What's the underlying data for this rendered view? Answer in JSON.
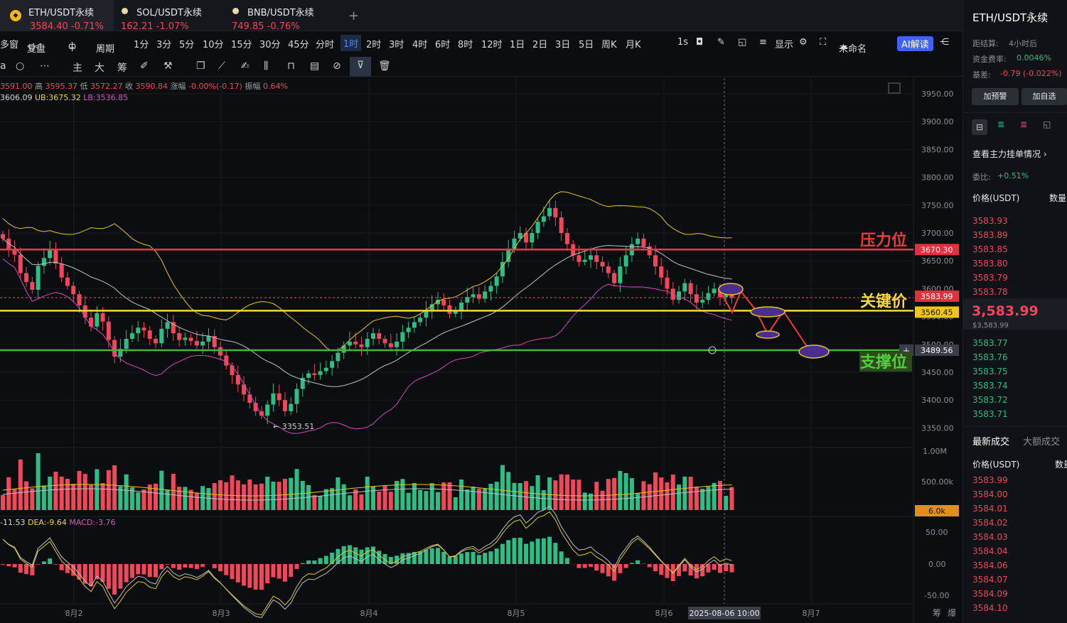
{
  "tabs": [
    {
      "name": "ETH/USDT永续",
      "price": "3584.40",
      "change": "-0.71%"
    },
    {
      "name": "SOL/USDT永续",
      "price": "162.21",
      "change": "-1.07%"
    },
    {
      "name": "BNB/USDT永续",
      "price": "749.85",
      "change": "-0.76%"
    }
  ],
  "toolbar": {
    "multi": "多窗",
    "replay": "复盘",
    "period": "周期",
    "intervals": [
      "1分",
      "3分",
      "5分",
      "10分",
      "15分",
      "30分",
      "45分",
      "分时",
      "1时",
      "2时",
      "3时",
      "4时",
      "6时",
      "8时",
      "12时",
      "1日",
      "2日",
      "3日",
      "5日",
      "周K",
      "月K"
    ],
    "selected": "1时",
    "sec": "1s",
    "display": "显示",
    "unnamed": "未命名",
    "ai": "AI解读"
  },
  "toolbar2": {
    "a": "a",
    "zhu": "主",
    "da": "大",
    "chou": "筹"
  },
  "ohlc": {
    "open": "3591.00",
    "high_label": "高",
    "high": "3595.37",
    "low_label": "低",
    "low": "3572.27",
    "close_label": "收",
    "close": "3590.84",
    "amp_label": "涨幅",
    "amp": "-0.00%(-0.17)",
    "vib_label": "振幅",
    "vib": "0.64%"
  },
  "boll": {
    "mid": "3606.09",
    "ub": "UB:3675.32",
    "lb": "LB:3536.85"
  },
  "macd_hdr": {
    "dif": "-11.53",
    "dea": "DEA:-9.64",
    "macd": "MACD:-3.76"
  },
  "price_axis": [
    "3950.00",
    "3900.00",
    "3850.00",
    "3800.00",
    "3750.00",
    "3700.00",
    "3650.00",
    "3600.00",
    "3550.00",
    "3500.00",
    "3450.00",
    "3400.00",
    "3350.00"
  ],
  "vol_axis": [
    "1.00M",
    "500.00k"
  ],
  "macd_axis": [
    "50.00",
    "0.00",
    "-50.00"
  ],
  "x_axis": [
    "8月2",
    "8月3",
    "8月4",
    "8月5",
    "8月6",
    "8月7"
  ],
  "crosshair_time": "2025-08-06 10:00",
  "labels": {
    "resistance": "压力位",
    "key": "关键价",
    "support": "支撑位"
  },
  "price_tags": {
    "resistance": "3670.30",
    "last": "3583.99",
    "key": "3560.45",
    "support": "3489.56",
    "vol": "6.0k"
  },
  "low_marker": "← 3353.51",
  "bottom_right": [
    "筹",
    "爆"
  ],
  "right_panel": {
    "title": "ETH/USDT永续",
    "settle_label": "距结算:",
    "settle": "4小时后",
    "funding_label": "资金费率:",
    "funding": "0.0046%",
    "basis_label": "基差:",
    "basis": "-0.79 (-0.022%)",
    "btn_alert": "加预警",
    "btn_fav": "加自选",
    "depth_link": "查看主力挂单情况",
    "ratio_label": "委比:",
    "ratio": "+0.51%",
    "col_price": "价格(USDT)",
    "col_qty": "数量",
    "asks": [
      "3583.93",
      "3583.89",
      "3583.85",
      "3583.80",
      "3583.79",
      "3583.78"
    ],
    "last": "3,583.99",
    "last_sub": "$3,583.99",
    "bids": [
      "3583.77",
      "3583.76",
      "3583.75",
      "3583.74",
      "3583.72",
      "3583.71"
    ],
    "trade_tab1": "最新成交",
    "trade_tab2": "大额成交",
    "trades_head": "价格(USDT)",
    "trades_qty": "数量",
    "trades": [
      "3583.99",
      "3584.00",
      "3584.01",
      "3584.02",
      "3584.03",
      "3584.04",
      "3584.06",
      "3584.07",
      "3584.09",
      "3584.10"
    ]
  },
  "colors": {
    "up": "#2ebd85",
    "down": "#f0475a",
    "accent": "#4a86ff",
    "resistance": "#f03a3a",
    "key": "#f5d83a",
    "support": "#49b33a"
  },
  "chart_data": {
    "type": "candlestick",
    "title": "ETH/USDT永续 1时",
    "ylim": [
      3330,
      3970
    ],
    "levels": {
      "resistance": 3670.3,
      "key": 3560.45,
      "support": 3489.56,
      "last": 3583.99
    },
    "ohlc_close": [
      3690,
      3672,
      3661,
      3628,
      3612,
      3598,
      3641,
      3655,
      3670,
      3645,
      3620,
      3605,
      3590,
      3570,
      3548,
      3532,
      3556,
      3541,
      3508,
      3478,
      3492,
      3510,
      3520,
      3530,
      3525,
      3510,
      3502,
      3528,
      3540,
      3520,
      3508,
      3512,
      3506,
      3498,
      3505,
      3515,
      3495,
      3480,
      3462,
      3445,
      3428,
      3410,
      3395,
      3380,
      3372,
      3392,
      3412,
      3400,
      3380,
      3393,
      3420,
      3440,
      3448,
      3445,
      3452,
      3458,
      3470,
      3485,
      3498,
      3505,
      3500,
      3495,
      3510,
      3520,
      3510,
      3502,
      3495,
      3505,
      3522,
      3530,
      3540,
      3548,
      3560,
      3572,
      3580,
      3570,
      3555,
      3560,
      3575,
      3585,
      3590,
      3582,
      3595,
      3605,
      3622,
      3648,
      3672,
      3690,
      3700,
      3683,
      3700,
      3720,
      3730,
      3745,
      3728,
      3700,
      3680,
      3660,
      3648,
      3652,
      3660,
      3648,
      3640,
      3628,
      3610,
      3640,
      3660,
      3680,
      3690,
      3676,
      3660,
      3640,
      3620,
      3600,
      3580,
      3595,
      3610,
      3590,
      3575,
      3580,
      3592,
      3600,
      3585,
      3590,
      3584
    ]
  }
}
